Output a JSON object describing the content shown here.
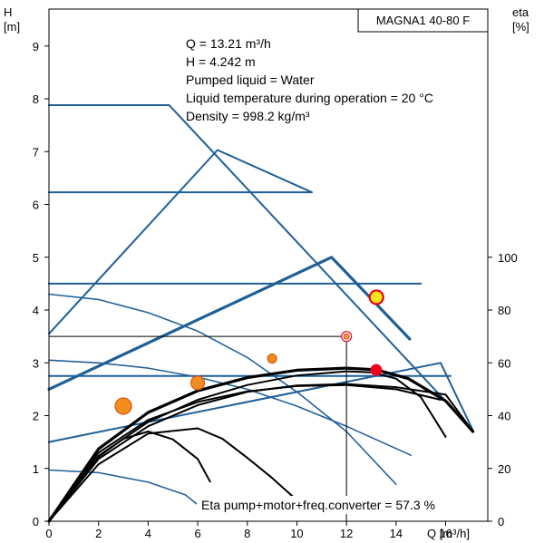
{
  "chart_data": {
    "type": "line",
    "title": "MAGNA1 40-80 F",
    "xlabel": "Q [m³/h]",
    "ylabel": "H",
    "ylabel_unit": "[m]",
    "y2label": "eta",
    "y2label_unit": "[%]",
    "xlim": [
      0,
      17.7
    ],
    "ylim": [
      0,
      9.7
    ],
    "y2lim": [
      0,
      194
    ],
    "x_ticks": [
      "0",
      "2",
      "4",
      "6",
      "8",
      "10",
      "12",
      "14",
      "16"
    ],
    "y_ticks": [
      "0",
      "1",
      "2",
      "3",
      "4",
      "5",
      "6",
      "7",
      "8",
      "9"
    ],
    "y2_ticks": [
      "0",
      "20",
      "40",
      "60",
      "80",
      "100"
    ],
    "grid": false,
    "info_lines": [
      "Q = 13.21 m³/h",
      "H = 4.242 m",
      "Pumped liquid = Water",
      "Liquid temperature during operation = 20 °C",
      "Density = 998.2 kg/m³"
    ],
    "eta_label": "Eta pump+motor+freq.converter = 57.3 %",
    "operating_point": {
      "x": 13.21,
      "y": 4.242
    },
    "reference_point": {
      "x": 12.0,
      "y": 3.5
    },
    "eta_point": {
      "x": 13.2,
      "y2": 57.3
    },
    "markers": [
      {
        "x": 3.0,
        "y": 2.18,
        "size": "large"
      },
      {
        "x": 6.0,
        "y": 2.62,
        "size": "medium"
      },
      {
        "x": 9.0,
        "y": 3.08,
        "size": "small"
      }
    ],
    "series": [
      {
        "style": "control",
        "values": [
          [
            0,
            7.88
          ],
          [
            4.85,
            7.88
          ],
          [
            17.1,
            1.72
          ]
        ]
      },
      {
        "style": "control",
        "values": [
          [
            0,
            6.23
          ],
          [
            10.6,
            6.23
          ]
        ]
      },
      {
        "style": "control",
        "values": [
          [
            0,
            4.5
          ],
          [
            15.0,
            4.5
          ]
        ]
      },
      {
        "style": "control",
        "values": [
          [
            0,
            2.75
          ],
          [
            16.2,
            2.75
          ]
        ]
      },
      {
        "style": "control",
        "values": [
          [
            0,
            3.55
          ],
          [
            6.8,
            7.03
          ],
          [
            10.6,
            6.23
          ]
        ]
      },
      {
        "style": "control-bold",
        "values": [
          [
            0,
            2.5
          ],
          [
            11.4,
            5.0
          ],
          [
            14.55,
            3.45
          ]
        ]
      },
      {
        "style": "control",
        "values": [
          [
            0,
            1.5
          ],
          [
            15.8,
            3.0
          ],
          [
            17.1,
            1.72
          ]
        ]
      },
      {
        "style": "curve",
        "values": [
          [
            0,
            4.3
          ],
          [
            2,
            4.2
          ],
          [
            4,
            3.95
          ],
          [
            6,
            3.6
          ],
          [
            8,
            3.1
          ],
          [
            10,
            2.45
          ],
          [
            12,
            1.7
          ],
          [
            14,
            0.7
          ]
        ]
      },
      {
        "style": "curve",
        "values": [
          [
            0,
            3.05
          ],
          [
            2,
            3.0
          ],
          [
            4,
            2.9
          ],
          [
            6,
            2.73
          ],
          [
            8,
            2.5
          ],
          [
            10,
            2.18
          ],
          [
            12,
            1.8
          ],
          [
            14.6,
            1.25
          ]
        ]
      },
      {
        "style": "curve",
        "values": [
          [
            0,
            0.97
          ],
          [
            2,
            0.92
          ],
          [
            4,
            0.74
          ],
          [
            5.5,
            0.5
          ],
          [
            6.3,
            0.2
          ]
        ]
      },
      {
        "style": "eta-bold",
        "values": [
          [
            0,
            0
          ],
          [
            2,
            1.37
          ],
          [
            4,
            2.06
          ],
          [
            6,
            2.47
          ],
          [
            8,
            2.72
          ],
          [
            10,
            2.86
          ],
          [
            12,
            2.9
          ],
          [
            13.2,
            2.87
          ],
          [
            14.5,
            2.7
          ],
          [
            16,
            2.28
          ],
          [
            17.1,
            1.7
          ]
        ]
      },
      {
        "style": "eta",
        "values": [
          [
            0,
            0
          ],
          [
            2,
            1.3
          ],
          [
            4,
            1.92
          ],
          [
            6,
            2.26
          ],
          [
            8,
            2.46
          ],
          [
            10,
            2.56
          ],
          [
            12,
            2.58
          ],
          [
            14,
            2.5
          ],
          [
            15.8,
            2.3
          ]
        ]
      },
      {
        "style": "eta",
        "values": [
          [
            0,
            0
          ],
          [
            2,
            1.18
          ],
          [
            4,
            1.8
          ],
          [
            6,
            2.2
          ],
          [
            8,
            2.45
          ],
          [
            10,
            2.57
          ],
          [
            12,
            2.6
          ],
          [
            14,
            2.54
          ],
          [
            16,
            2.4
          ],
          [
            17.1,
            1.7
          ]
        ]
      },
      {
        "style": "eta",
        "values": [
          [
            0,
            0
          ],
          [
            2,
            1.24
          ],
          [
            4,
            1.88
          ],
          [
            6,
            2.3
          ],
          [
            8,
            2.58
          ],
          [
            10,
            2.76
          ],
          [
            12,
            2.84
          ],
          [
            13,
            2.82
          ],
          [
            14,
            2.7
          ],
          [
            15,
            2.35
          ],
          [
            16,
            1.6
          ]
        ]
      },
      {
        "style": "eta",
        "values": [
          [
            0,
            0
          ],
          [
            2,
            1.08
          ],
          [
            4,
            1.66
          ],
          [
            6,
            1.76
          ],
          [
            7,
            1.56
          ],
          [
            8,
            1.2
          ],
          [
            9,
            0.82
          ],
          [
            10,
            0.4
          ]
        ]
      },
      {
        "style": "eta",
        "values": [
          [
            0,
            0
          ],
          [
            1,
            0.7
          ],
          [
            2,
            1.22
          ],
          [
            3,
            1.56
          ],
          [
            4,
            1.7
          ],
          [
            5,
            1.55
          ],
          [
            6,
            1.18
          ],
          [
            6.5,
            0.75
          ]
        ]
      }
    ],
    "colors": {
      "control": "#1f5f96",
      "curve": "#24629b",
      "eta": "#000000",
      "marker_fill": "#f28c1c",
      "marker_stroke": "#d5591a",
      "op_fill": "#ffe419",
      "op_stroke": "#e8001c",
      "eta_point": "#ee0018",
      "ref_stroke": "#e8172c",
      "ref_fill": "#f0a332"
    }
  }
}
